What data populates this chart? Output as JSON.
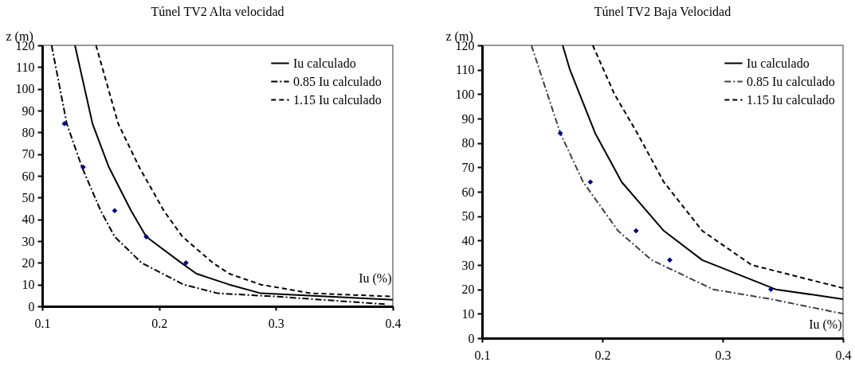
{
  "chart_data": [
    {
      "type": "line",
      "title": "Túnel TV2 Alta velocidad",
      "xlabel": "Iu (%)",
      "ylabel": "z (m)",
      "xlim": [
        0.1,
        0.4
      ],
      "xticks": [
        0.1,
        0.2,
        0.3,
        0.4
      ],
      "ylim": [
        0,
        120
      ],
      "yticks": [
        0,
        10,
        20,
        30,
        40,
        50,
        60,
        70,
        80,
        90,
        100,
        110,
        120
      ],
      "grid": false,
      "legend": "top right",
      "series": [
        {
          "name": "Iu calculado",
          "color": "#000000",
          "line_style": "solid",
          "x": [
            0.128,
            0.143,
            0.157,
            0.176,
            0.189,
            0.219,
            0.232,
            0.26,
            0.287,
            0.4
          ],
          "values": [
            120,
            84,
            64,
            44,
            32,
            20,
            15,
            10,
            6,
            3
          ]
        },
        {
          "name": "0.85 Iu  calculado",
          "color": "#000000",
          "line_style": "dashdot",
          "x": [
            0.108,
            0.121,
            0.134,
            0.15,
            0.162,
            0.185,
            0.221,
            0.25,
            0.3,
            0.393
          ],
          "values": [
            120,
            84,
            64,
            44,
            32,
            20,
            10,
            6,
            4.5,
            1
          ]
        },
        {
          "name": "1.15 Iu calculado",
          "color": "#000000",
          "line_style": "dashed",
          "x": [
            0.146,
            0.165,
            0.183,
            0.204,
            0.22,
            0.246,
            0.26,
            0.287,
            0.33,
            0.4
          ],
          "values": [
            120,
            84,
            64,
            44,
            32,
            20,
            15,
            10,
            6,
            4.5
          ]
        },
        {
          "type": "scatter",
          "color": "#000080",
          "marker": "diamond",
          "x": [
            0.119,
            0.135,
            0.162,
            0.189,
            0.223
          ],
          "values": [
            84,
            64,
            44,
            32,
            20
          ]
        }
      ]
    },
    {
      "type": "line",
      "title": "Túnel TV2 Baja Velocidad",
      "xlabel": "Iu (%)",
      "ylabel": "z (m)",
      "xlim": [
        0.1,
        0.4
      ],
      "xticks": [
        0.1,
        0.2,
        0.3,
        0.4
      ],
      "ylim": [
        0,
        120
      ],
      "yticks": [
        0,
        10,
        20,
        30,
        40,
        50,
        60,
        70,
        80,
        90,
        100,
        110,
        120
      ],
      "grid": false,
      "legend": "top right",
      "series": [
        {
          "name": "Iu calculado",
          "color": "#000000",
          "line_style": "solid",
          "x": [
            0.167,
            0.173,
            0.194,
            0.216,
            0.251,
            0.283,
            0.344,
            0.4
          ],
          "values": [
            120,
            110,
            84,
            64,
            44,
            32,
            20,
            16
          ]
        },
        {
          "name": "0.85 Iu calculado",
          "color": "#404040",
          "line_style": "dashdot",
          "x": [
            0.141,
            0.165,
            0.184,
            0.213,
            0.241,
            0.292,
            0.34,
            0.4
          ],
          "values": [
            120,
            84,
            64,
            44,
            32,
            20,
            16,
            10
          ]
        },
        {
          "name": "1.15 Iu calculado",
          "color": "#000000",
          "line_style": "dashed",
          "x": [
            0.192,
            0.21,
            0.229,
            0.251,
            0.283,
            0.324,
            0.4
          ],
          "values": [
            120,
            100,
            84,
            64,
            44,
            30,
            20.5
          ]
        },
        {
          "type": "scatter",
          "color": "#000080",
          "marker": "diamond",
          "x": [
            0.165,
            0.19,
            0.228,
            0.256,
            0.34
          ],
          "values": [
            84,
            64,
            44,
            32,
            20
          ]
        }
      ]
    }
  ]
}
